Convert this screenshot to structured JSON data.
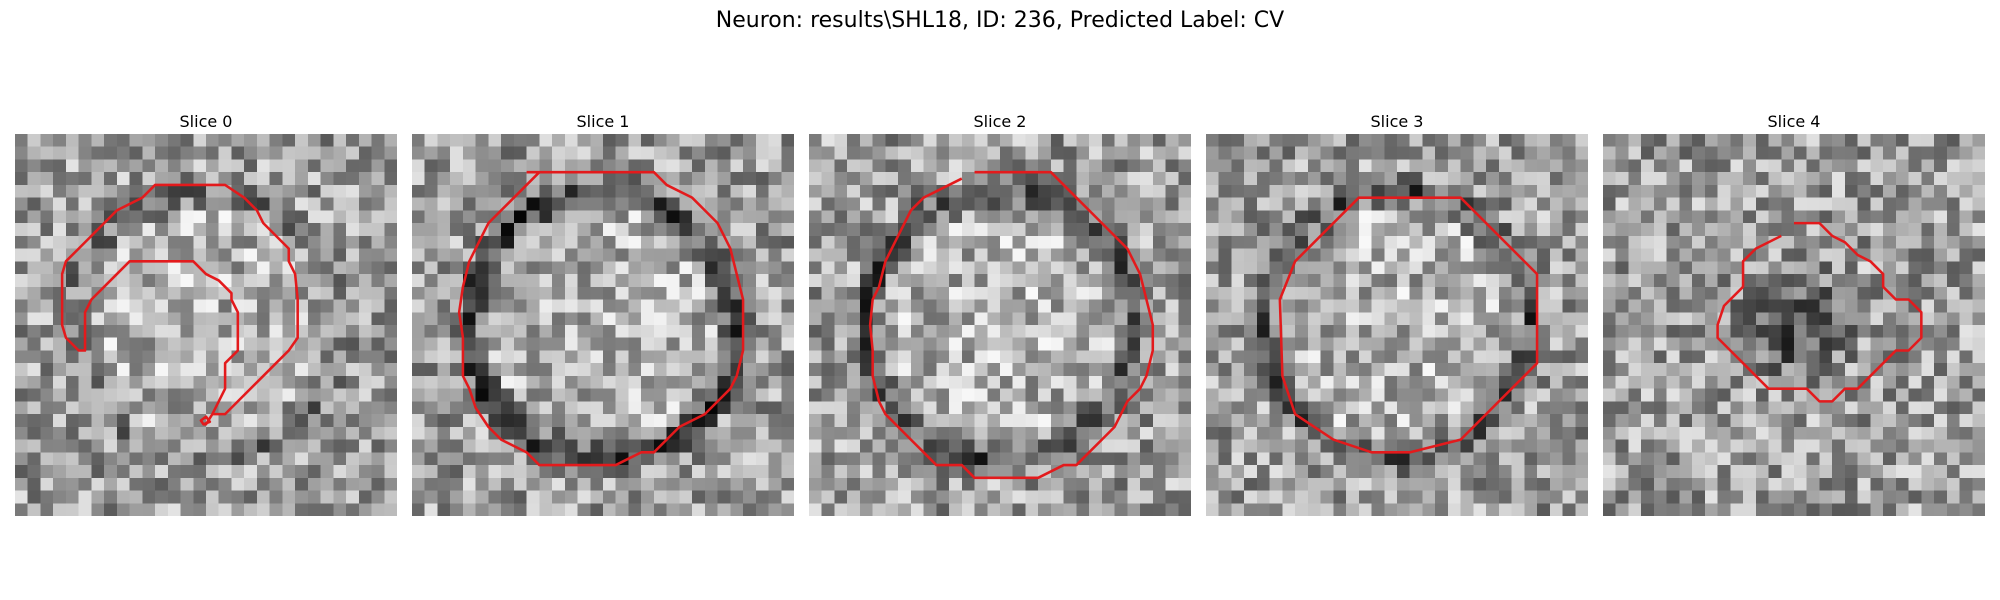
{
  "figure": {
    "title": "Neuron: results\\SHL18, ID: 236, Predicted Label: CV",
    "contour_color": "#e31a1c"
  },
  "panels": [
    {
      "label": "Slice 0",
      "seed": 17,
      "ring_strength": 0.15,
      "dark_center": 0
    },
    {
      "label": "Slice 1",
      "seed": 29,
      "ring_strength": 0.45,
      "dark_center": 0
    },
    {
      "label": "Slice 2",
      "seed": 41,
      "ring_strength": 0.35,
      "dark_center": 0
    },
    {
      "label": "Slice 3",
      "seed": 53,
      "ring_strength": 0.3,
      "dark_center": 0
    },
    {
      "label": "Slice 4",
      "seed": 67,
      "ring_strength": 0.0,
      "dark_center": 0.35
    }
  ]
}
